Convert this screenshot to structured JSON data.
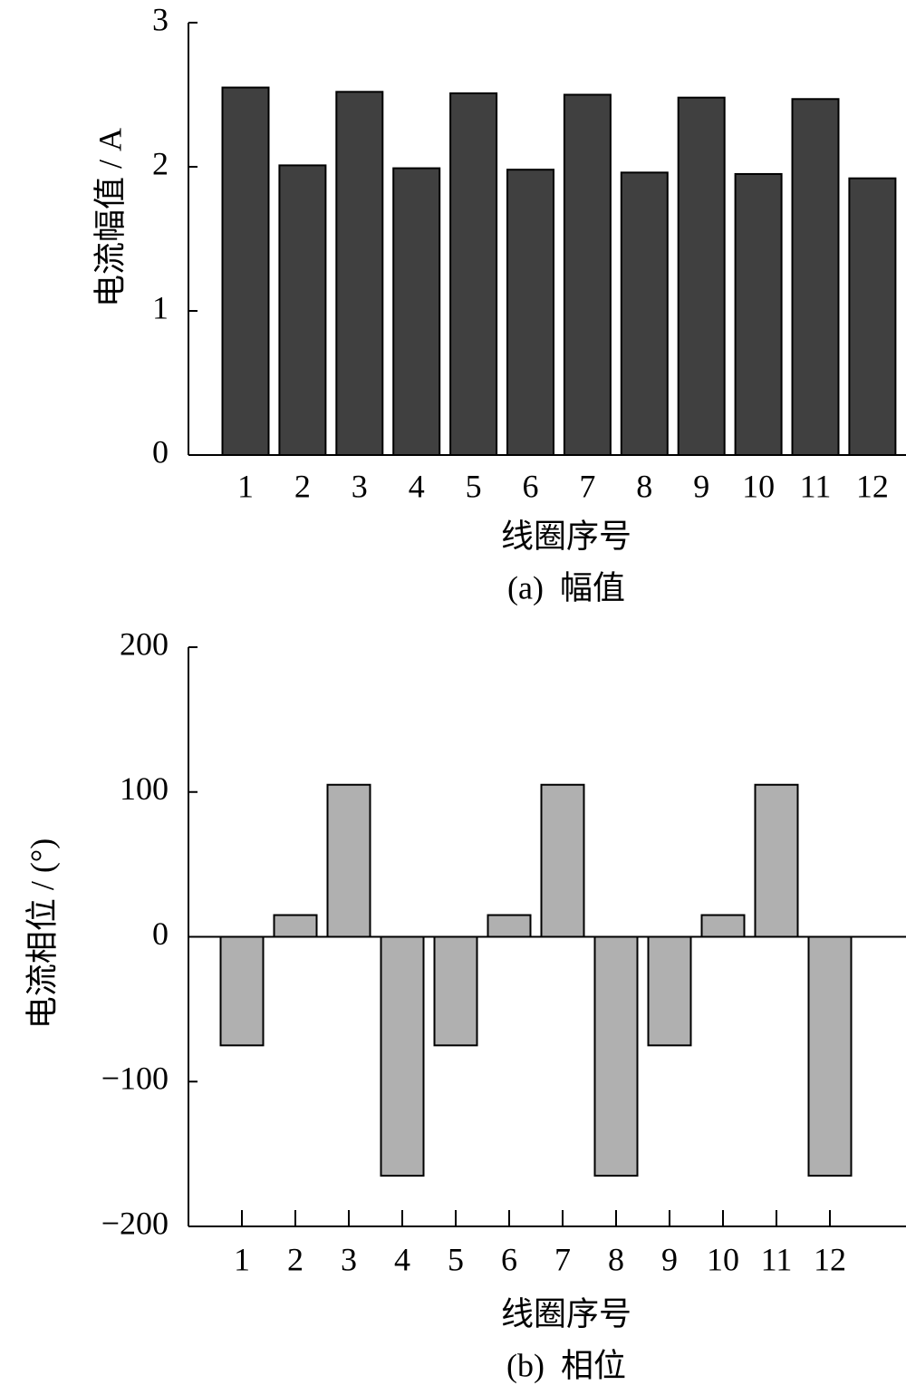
{
  "chart_data": [
    {
      "type": "bar",
      "categories": [
        "1",
        "2",
        "3",
        "4",
        "5",
        "6",
        "7",
        "8",
        "9",
        "10",
        "11",
        "12"
      ],
      "values": [
        2.55,
        2.01,
        2.52,
        1.99,
        2.51,
        1.98,
        2.5,
        1.96,
        2.48,
        1.95,
        2.47,
        1.92
      ],
      "color": "#404040",
      "ylim": [
        0,
        3
      ],
      "yticks": [
        0,
        1,
        2,
        3
      ],
      "y_label": "电流幅值 / A",
      "x_label": "线圈序号",
      "caption": "(a)  幅值"
    },
    {
      "type": "bar",
      "categories": [
        "1",
        "2",
        "3",
        "4",
        "5",
        "6",
        "7",
        "8",
        "9",
        "10",
        "11",
        "12"
      ],
      "values": [
        -75,
        15,
        105,
        -165,
        -75,
        15,
        105,
        -165,
        -75,
        15,
        105,
        -165
      ],
      "color": "#b0b0b0",
      "ylim": [
        -200,
        200
      ],
      "yticks": [
        {
          "value": -200,
          "label": "−200"
        },
        {
          "value": -100,
          "label": "−100"
        },
        0,
        100,
        200
      ],
      "y_label": "电流相位 / (°)",
      "x_label": "线圈序号",
      "caption": "(b)  相位"
    }
  ]
}
